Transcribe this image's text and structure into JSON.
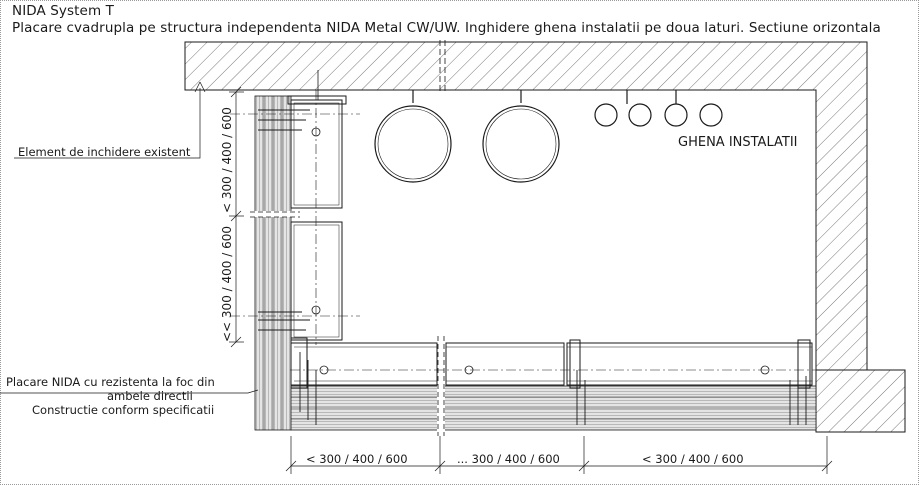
{
  "title": {
    "line1": "NIDA System T",
    "line2": "Placare cvadrupla pe structura independenta NIDA Metal CW/UW. Inghidere ghena instalatii pe doua laturi. Sectiune orizontala"
  },
  "labels": {
    "existing_element": "Element de inchidere existent",
    "nida_cladding_1": "Placare NIDA cu rezistenta la foc din",
    "nida_cladding_2": "ambele directii",
    "construction_note": "Constructie conform specificatii",
    "shaft": "GHENA INSTALATII"
  },
  "dimensions": {
    "horizontal": [
      "< 300 / 400 / 600",
      "... 300 / 400 / 600",
      "< 300 / 400 / 600"
    ],
    "vertical": [
      "< 300 / 400 / 600",
      "<< 300 / 400 / 600"
    ]
  },
  "colors": {
    "line": "#1a1a1a",
    "hatch": "#555555",
    "board": "#c8c8c8",
    "frame": "#9a9a9a"
  }
}
